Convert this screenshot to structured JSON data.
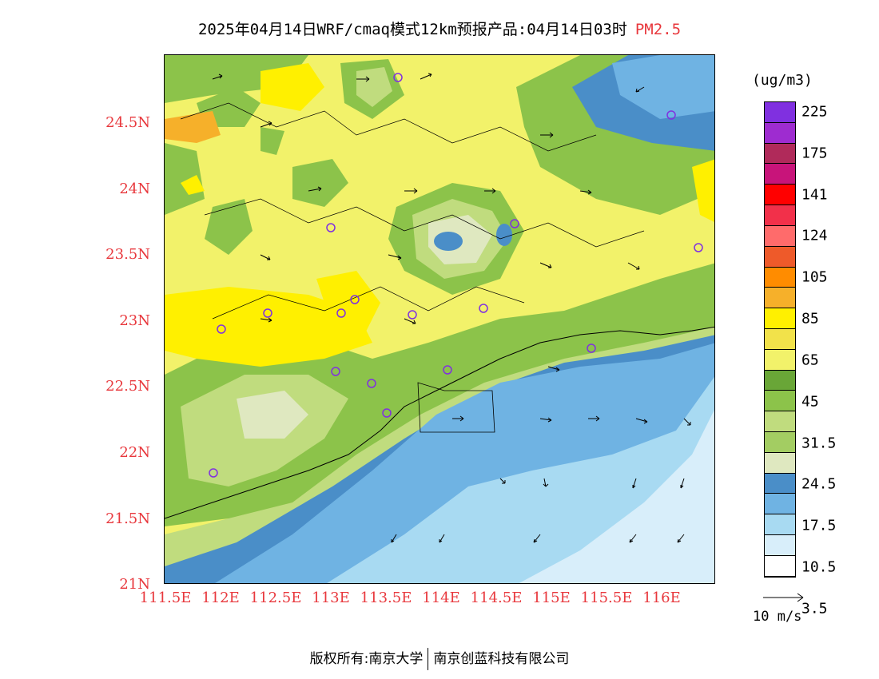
{
  "title": {
    "main": "2025年04月14日WRF/cmaq模式12km预报产品:04月14日03时",
    "variable": "PM2.5"
  },
  "map": {
    "lat_labels": [
      "24.5N",
      "24N",
      "23.5N",
      "23N",
      "22.5N",
      "22N",
      "21.5N",
      "21N"
    ],
    "lon_labels": [
      "111.5E",
      "112E",
      "112.5E",
      "113E",
      "113.5E",
      "114E",
      "114.5E",
      "115E",
      "115.5E",
      "116E"
    ]
  },
  "legend": {
    "unit": "(ug/m3)",
    "colors": [
      "#ffffff",
      "#d8eefa",
      "#a8daf2",
      "#6fb3e3",
      "#4a8ec8",
      "#dfe8c0",
      "#c0dc7e",
      "#8cc34a",
      "#69a637",
      "#f2f26a",
      "#f2e24a",
      "#fff000",
      "#f6b02a",
      "#ff8c00",
      "#ee5a2a",
      "#ff6b6b",
      "#f2304a",
      "#ff0000",
      "#c8147a",
      "#b02a5a",
      "#9e2cd0",
      "#8030e0"
    ],
    "labels": [
      "225",
      "175",
      "141",
      "124",
      "105",
      "85",
      "65",
      "45",
      "31.5",
      "24.5",
      "17.5",
      "10.5",
      "3.5"
    ],
    "reference_vector": "10 m/s"
  },
  "footer": {
    "copyright": "版权所有:南京大学",
    "company": "南京创蓝科技有限公司"
  }
}
